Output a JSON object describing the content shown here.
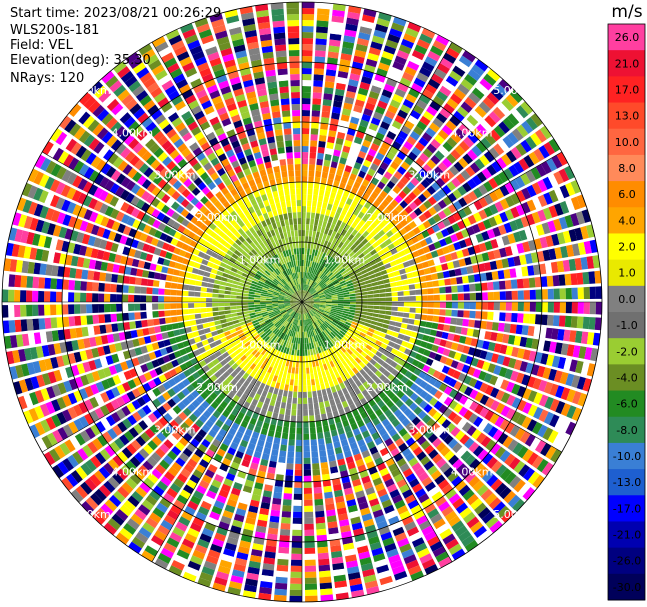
{
  "header": {
    "start_time": "Start time: 2023/08/21 00:26:29",
    "instrument": "WLS200s-181",
    "field": "Field: VEL",
    "elevation": "Elevation(deg): 35.30",
    "nrays": "NRays: 120"
  },
  "colorbar": {
    "unit": "m/s",
    "levels": [
      {
        "label": "26.0",
        "color": "#ff3fa0"
      },
      {
        "label": "21.0",
        "color": "#ee1133"
      },
      {
        "label": "17.0",
        "color": "#ff2222"
      },
      {
        "label": "13.0",
        "color": "#ff4a2a"
      },
      {
        "label": "10.0",
        "color": "#ff6640"
      },
      {
        "label": "8.0",
        "color": "#ff8a5a"
      },
      {
        "label": "6.0",
        "color": "#ff8c00"
      },
      {
        "label": "4.0",
        "color": "#ffa500"
      },
      {
        "label": "2.0",
        "color": "#ffff00"
      },
      {
        "label": "1.0",
        "color": "#e9e900"
      },
      {
        "label": "0.0",
        "color": "#808080"
      },
      {
        "label": "-1.0",
        "color": "#707070"
      },
      {
        "label": "-2.0",
        "color": "#9acd32"
      },
      {
        "label": "-4.0",
        "color": "#6b8e23"
      },
      {
        "label": "-6.0",
        "color": "#228b22"
      },
      {
        "label": "-8.0",
        "color": "#2e8b57"
      },
      {
        "label": "-10.0",
        "color": "#3a7fd5"
      },
      {
        "label": "-13.0",
        "color": "#1e5fd0"
      },
      {
        "label": "-17.0",
        "color": "#0000ff"
      },
      {
        "label": "-21.0",
        "color": "#0000b0"
      },
      {
        "label": "-26.0",
        "color": "#000080"
      },
      {
        "label": "-30.0",
        "color": "#00005a"
      }
    ]
  },
  "range_rings": {
    "labels": [
      "1.00km",
      "2.00km",
      "3.00km",
      "4.00km",
      "5.00km"
    ]
  }
}
